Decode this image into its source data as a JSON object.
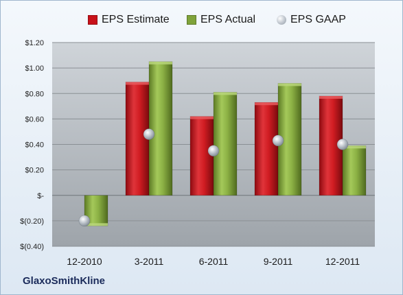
{
  "company": "GlaxoSmithKline",
  "colors": {
    "estimate": "#c8111a",
    "actual": "#7fa33a",
    "gaap": "#a8b0b8",
    "plot_bg_top": "#cfd4d9",
    "plot_bg_bottom": "#9ea4aa"
  },
  "legend": [
    {
      "label": "EPS Estimate",
      "marker": "square",
      "color": "#c8111a"
    },
    {
      "label": "EPS Actual",
      "marker": "square",
      "color": "#7fa33a"
    },
    {
      "label": "EPS GAAP",
      "marker": "circle",
      "color": "#a8b0b8"
    }
  ],
  "chart_data": {
    "type": "bar",
    "categories": [
      "12-2010",
      "3-2011",
      "6-2011",
      "9-2011",
      "12-2011"
    ],
    "series": [
      {
        "name": "EPS Estimate",
        "type": "bar",
        "values": [
          null,
          0.89,
          0.62,
          0.73,
          0.78
        ]
      },
      {
        "name": "EPS Actual",
        "type": "bar",
        "values": [
          -0.24,
          1.05,
          0.81,
          0.88,
          0.39
        ]
      },
      {
        "name": "EPS GAAP",
        "type": "scatter",
        "values": [
          -0.2,
          0.48,
          0.35,
          0.43,
          0.4
        ]
      }
    ],
    "ylim": [
      -0.4,
      1.2
    ],
    "yticks": [
      1.2,
      1.0,
      0.8,
      0.6,
      0.4,
      0.2,
      0,
      -0.2,
      -0.4
    ],
    "ytick_labels": [
      "$1.20",
      "$1.00",
      "$0.80",
      "$0.60",
      "$0.40",
      "$0.20",
      "$-",
      "$(0.20)",
      "$(0.40)"
    ],
    "grid": true,
    "legend_position": "top"
  }
}
